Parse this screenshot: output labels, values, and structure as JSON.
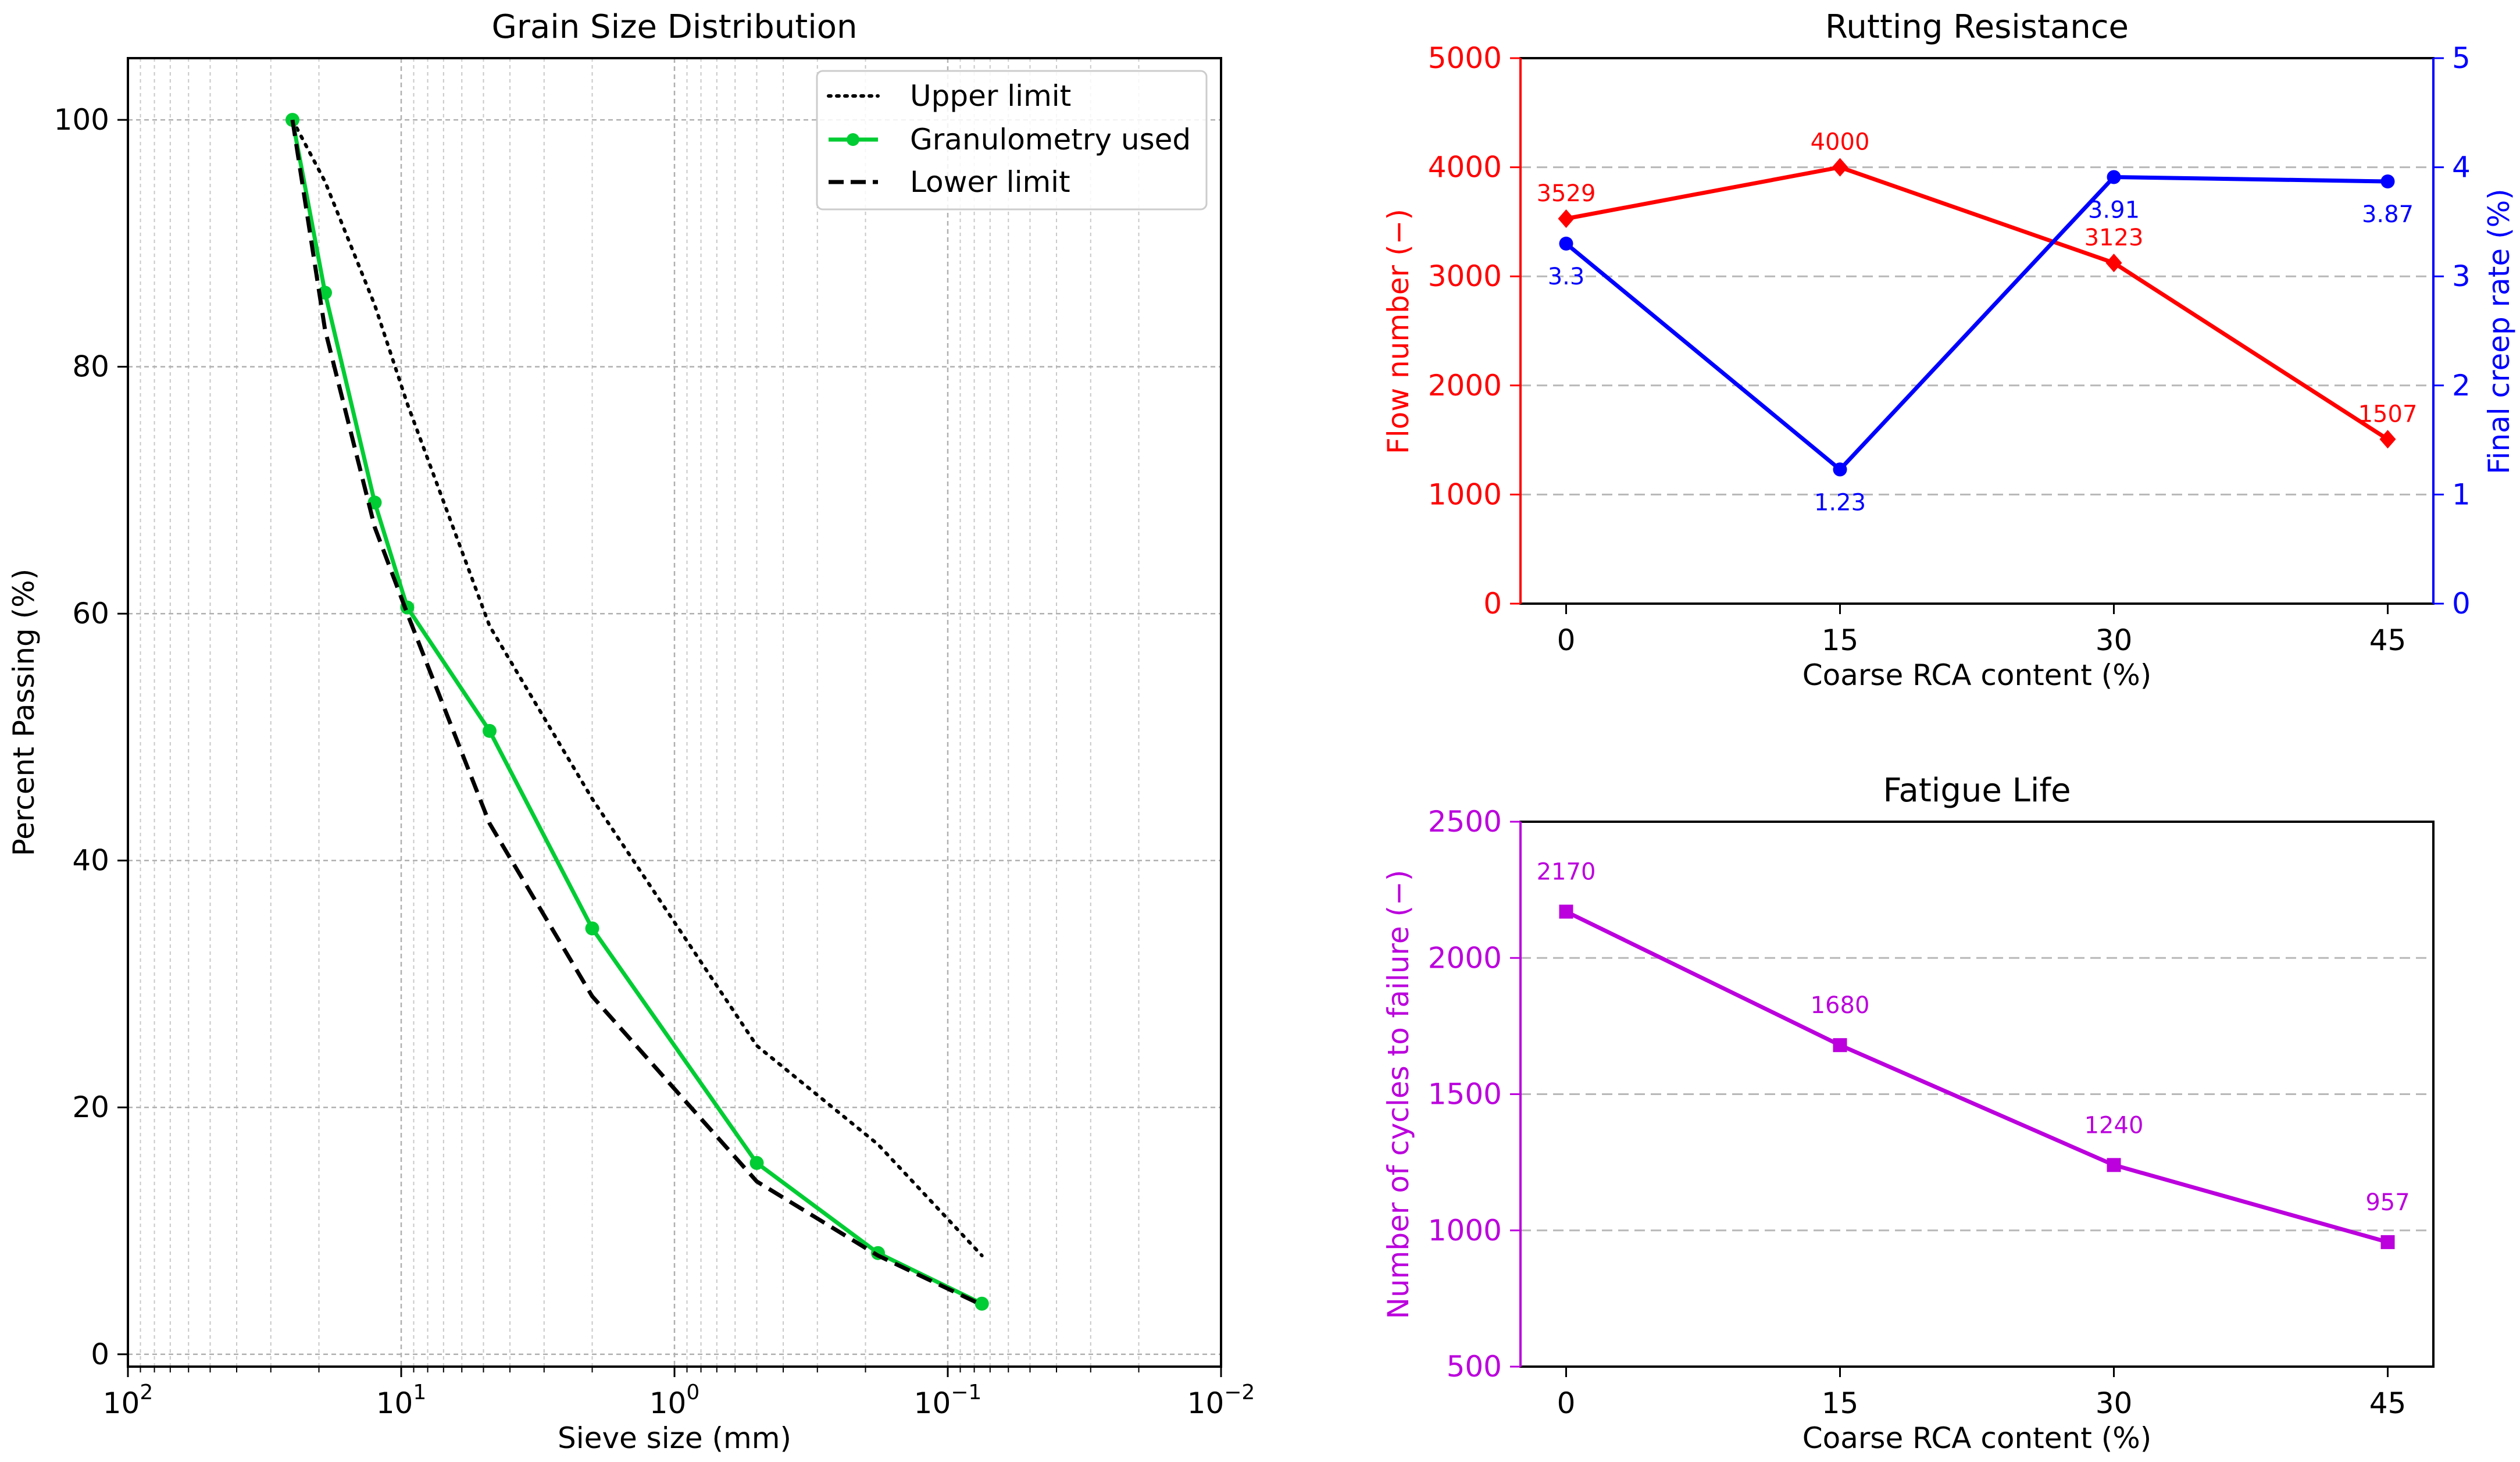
{
  "chart_data": [
    {
      "type": "line",
      "title": "Grain Size Distribution",
      "xlabel": "Sieve size (mm)",
      "ylabel": "Percent Passing (%)",
      "xscale": "log",
      "x_inverted": true,
      "xlim": [
        100,
        0.01
      ],
      "ylim": [
        -1,
        105
      ],
      "xticks": [
        {
          "value": 100,
          "base": "10",
          "exp": "2"
        },
        {
          "value": 10,
          "base": "10",
          "exp": "1"
        },
        {
          "value": 1,
          "base": "10",
          "exp": "0"
        },
        {
          "value": 0.1,
          "base": "10",
          "exp": "−1"
        },
        {
          "value": 0.01,
          "base": "10",
          "exp": "−2"
        }
      ],
      "yticks": [
        0,
        20,
        40,
        60,
        80,
        100
      ],
      "grid": true,
      "legend_position": "top-right",
      "series": [
        {
          "name": "Upper limit",
          "style": "dotted",
          "color": "#000000",
          "x": [
            25,
            19,
            12.5,
            9.5,
            4.75,
            2,
            0.5,
            0.18,
            0.075
          ],
          "y": [
            100,
            95,
            85,
            77,
            59,
            45,
            25,
            17,
            8
          ]
        },
        {
          "name": "Granulometry used",
          "style": "solid-marker",
          "color": "#00cc33",
          "x": [
            25,
            19,
            12.5,
            9.5,
            4.75,
            2,
            0.5,
            0.18,
            0.075
          ],
          "y": [
            100,
            86,
            69,
            60.5,
            50.5,
            34.5,
            15.5,
            8.2,
            4.1
          ]
        },
        {
          "name": "Lower limit",
          "style": "dashed",
          "color": "#000000",
          "x": [
            25,
            19,
            12.5,
            9.5,
            4.75,
            2,
            0.5,
            0.18,
            0.075
          ],
          "y": [
            100,
            83,
            67,
            60,
            43,
            29,
            14,
            8,
            4
          ]
        }
      ]
    },
    {
      "type": "line",
      "title": "Rutting Resistance",
      "xlabel": "Coarse RCA content (%)",
      "ylabel": "Flow number (−)",
      "ylabel_right": "Final creep rate (%)",
      "categories": [
        "0",
        "15",
        "30",
        "45"
      ],
      "x": [
        0,
        15,
        30,
        45
      ],
      "xlim": [
        -2.5,
        47.5
      ],
      "ylim": [
        0,
        5000
      ],
      "ylim_right": [
        0,
        5
      ],
      "yticks": [
        0,
        1000,
        2000,
        3000,
        4000,
        5000
      ],
      "yticks_right": [
        0,
        1,
        2,
        3,
        4,
        5
      ],
      "grid": "horizontal-dashed",
      "series": [
        {
          "name": "Flow number",
          "axis": "left",
          "color": "#ff0000",
          "marker": "diamond",
          "values": [
            3529,
            4000,
            3123,
            1507
          ],
          "labels": [
            "3529",
            "4000",
            "3123",
            "1507"
          ]
        },
        {
          "name": "Final creep rate",
          "axis": "right",
          "color": "#0000ff",
          "marker": "circle",
          "values": [
            3.3,
            1.23,
            3.91,
            3.87
          ],
          "labels": [
            "3.3",
            "1.23",
            "3.91",
            "3.87"
          ]
        }
      ]
    },
    {
      "type": "line",
      "title": "Fatigue Life",
      "xlabel": "Coarse RCA content (%)",
      "ylabel": "Number of cycles to failure (−)",
      "categories": [
        "0",
        "15",
        "30",
        "45"
      ],
      "x": [
        0,
        15,
        30,
        45
      ],
      "xlim": [
        -2.5,
        47.5
      ],
      "ylim": [
        500,
        2500
      ],
      "yticks": [
        500,
        1000,
        1500,
        2000,
        2500
      ],
      "grid": "horizontal-dashed",
      "series": [
        {
          "name": "Cycles to failure",
          "color": "#bb00dd",
          "marker": "square",
          "values": [
            2170,
            1680,
            1240,
            957
          ],
          "labels": [
            "2170",
            "1680",
            "1240",
            "957"
          ]
        }
      ]
    }
  ]
}
